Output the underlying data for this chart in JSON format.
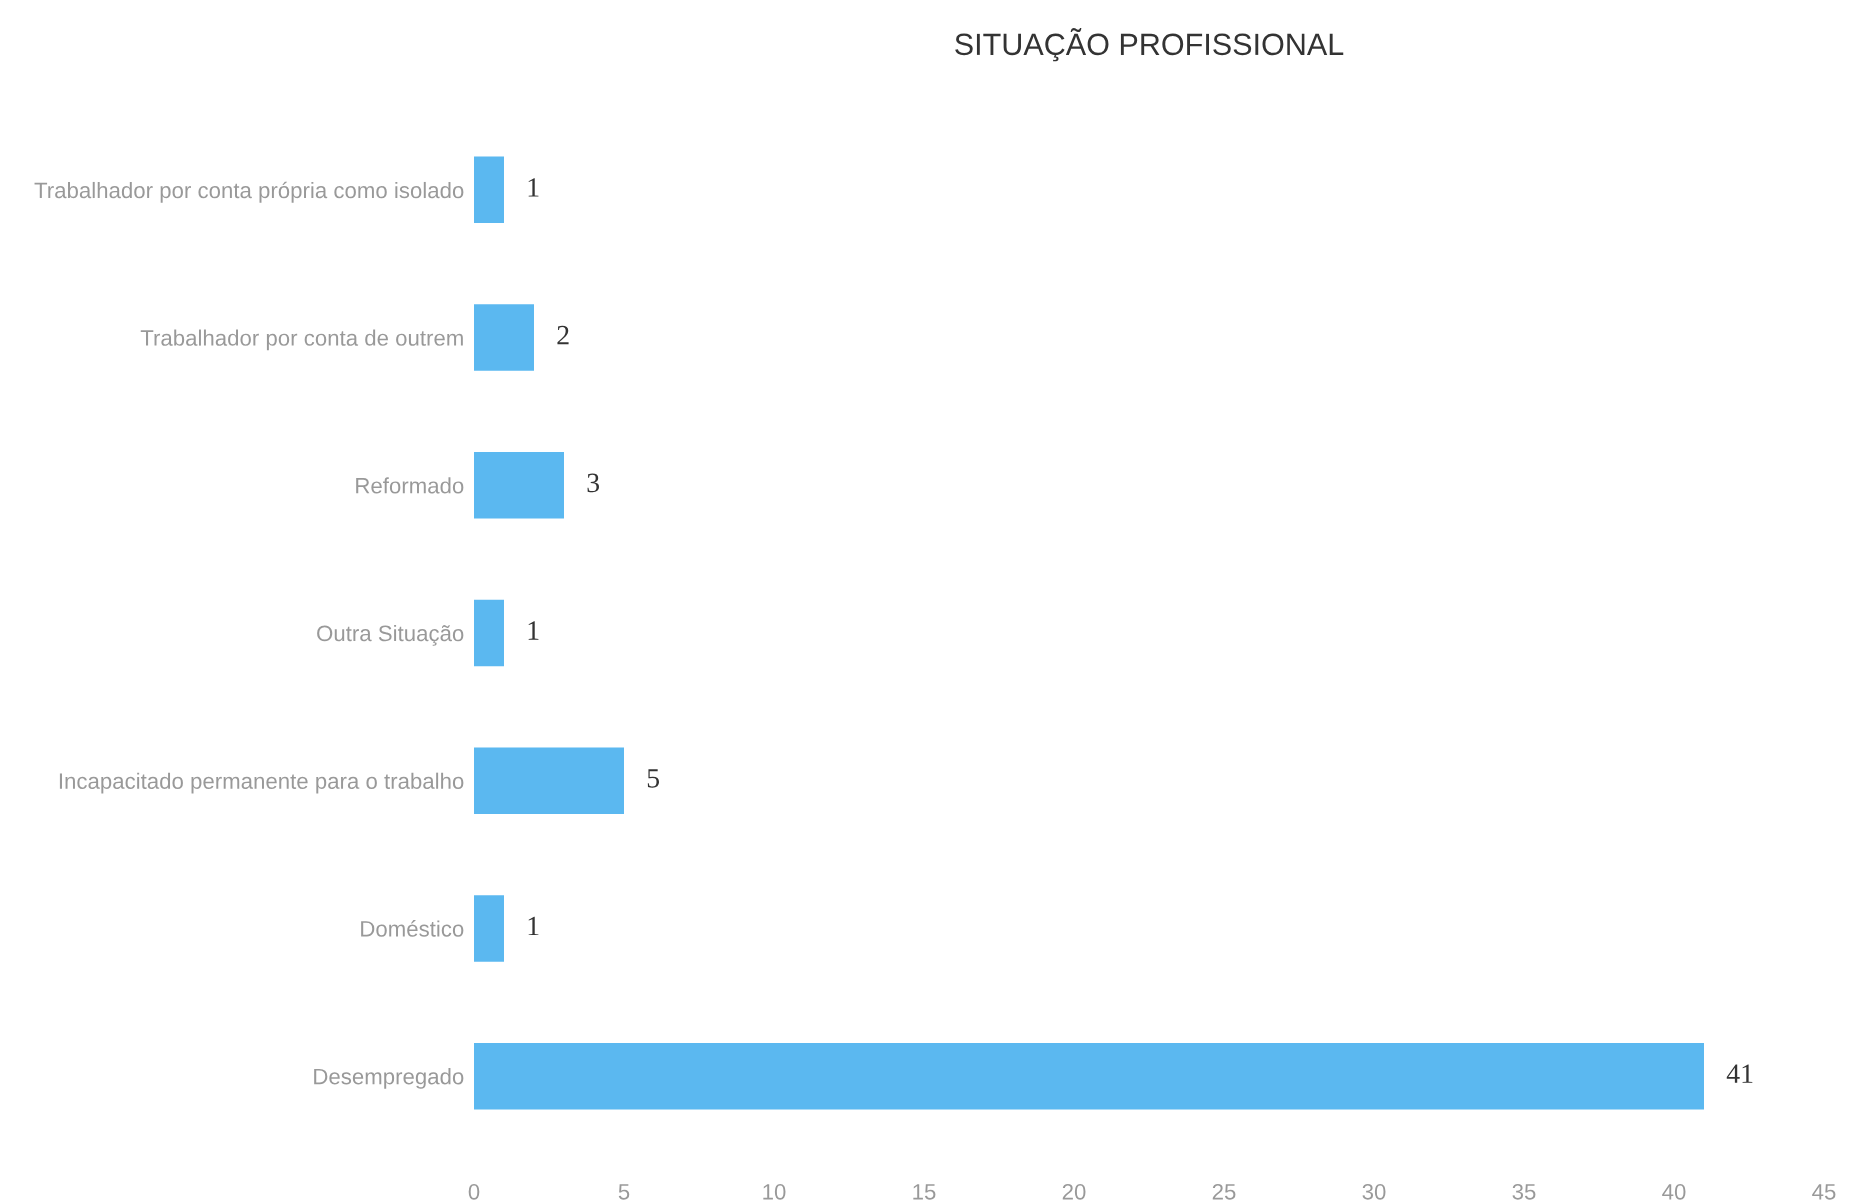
{
  "chart_data": {
    "type": "bar",
    "orientation": "horizontal",
    "title": "SITUAÇÃO PROFISSIONAL",
    "categories": [
      "Trabalhador por conta própria como isolado",
      "Trabalhador por conta de outrem",
      "Reformado",
      "Outra Situação",
      "Incapacitado permanente para o trabalho",
      "Doméstico",
      "Desempregado"
    ],
    "values": [
      1,
      2,
      3,
      1,
      5,
      1,
      41
    ],
    "color": "#5bb8f0",
    "data_labels": true,
    "grid": false,
    "legend": false,
    "xlim": [
      0,
      45
    ],
    "xticks": [
      0,
      5,
      10,
      15,
      20,
      25,
      30,
      35,
      40,
      45
    ]
  }
}
